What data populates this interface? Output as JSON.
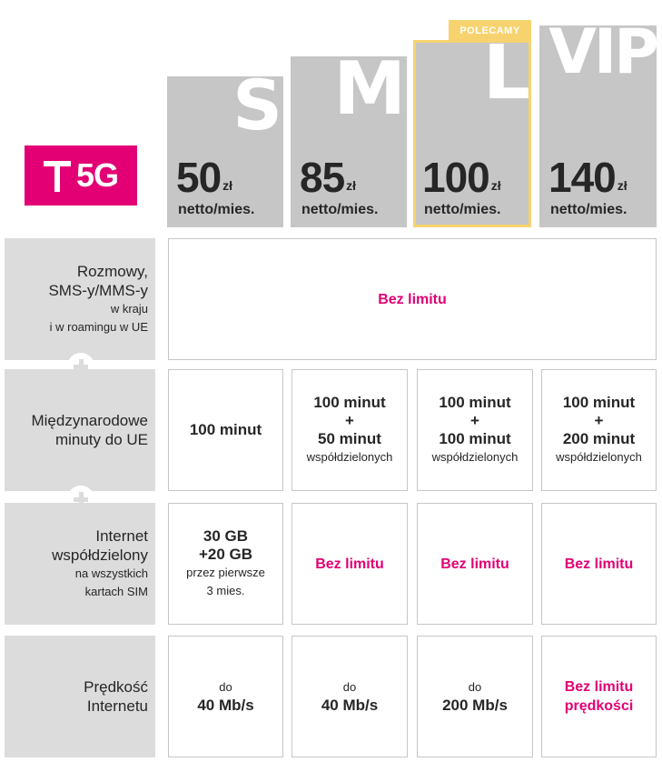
{
  "brand": {
    "logo_text": "5G",
    "accent_color": "#e20074",
    "highlight_color": "#f6d36e"
  },
  "badge": "POLECAMY",
  "plans": [
    {
      "letter": "S",
      "price": "50",
      "currency": "zł",
      "period": "netto/mies."
    },
    {
      "letter": "M",
      "price": "85",
      "currency": "zł",
      "period": "netto/mies."
    },
    {
      "letter": "L",
      "price": "100",
      "currency": "zł",
      "period": "netto/mies."
    },
    {
      "letter": "VIP",
      "price": "140",
      "currency": "zł",
      "period": "netto/mies."
    }
  ],
  "rows": {
    "calls": {
      "title1": "Rozmowy,",
      "title2": "SMS-y/MMS-y",
      "sub1": "w kraju",
      "sub2": "i w roamingu w UE",
      "value": "Bez limitu"
    },
    "intl": {
      "title1": "Międzynarodowe",
      "title2": "minuty do UE",
      "s": {
        "line1": "100 minut"
      },
      "m": {
        "line1": "100 minut",
        "plus": "+",
        "line2": "50 minut",
        "note": "współdzielonych"
      },
      "l": {
        "line1": "100 minut",
        "plus": "+",
        "line2": "100 minut",
        "note": "współdzielonych"
      },
      "vip": {
        "line1": "100 minut",
        "plus": "+",
        "line2": "200 minut",
        "note": "współdzielonych"
      }
    },
    "internet": {
      "title1": "Internet",
      "title2": "współdzielony",
      "sub1": "na wszystkich",
      "sub2": "kartach SIM",
      "s": {
        "line1": "30 GB",
        "line2": "+20 GB",
        "note1": "przez pierwsze",
        "note2": "3 mies."
      },
      "m": "Bez limitu",
      "l": "Bez limitu",
      "vip": "Bez limitu"
    },
    "speed": {
      "title1": "Prędkość",
      "title2": "Internetu",
      "s": {
        "pre": "do",
        "value": "40 Mb/s"
      },
      "m": {
        "pre": "do",
        "value": "40 Mb/s"
      },
      "l": {
        "pre": "do",
        "value": "200 Mb/s"
      },
      "vip": {
        "line1": "Bez limitu",
        "line2": "prędkości"
      }
    }
  }
}
